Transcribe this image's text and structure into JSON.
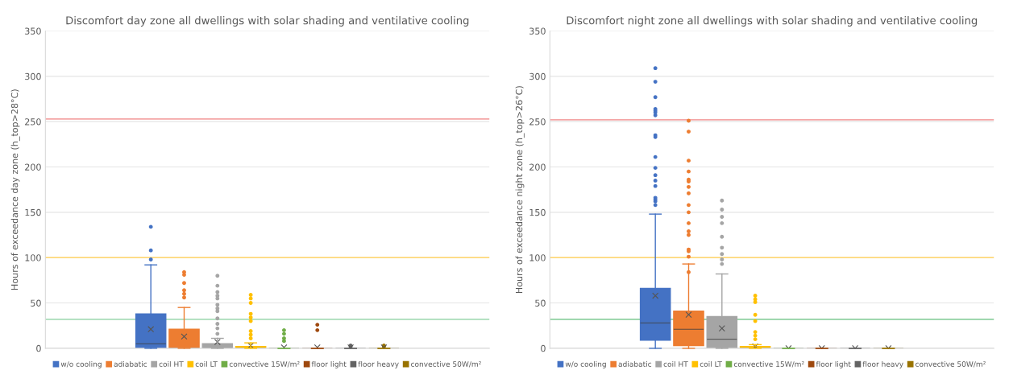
{
  "chart_data": [
    {
      "type": "box",
      "title": "Discomfort day zone all dwellings with solar shading and ventilative cooling",
      "ylabel": "Hours of exceedance day zone (h_top>28°C)",
      "categories": [
        null
      ],
      "ylim": [
        0,
        350
      ],
      "yticks": [
        0,
        50,
        100,
        150,
        200,
        250,
        300,
        350
      ],
      "grid": "y",
      "legend": "bottom",
      "ref_lines": [
        {
          "axis": "y",
          "value": 253,
          "color": "#f4a6a6"
        },
        {
          "axis": "y",
          "value": 100,
          "color": "#ffd97a"
        },
        {
          "axis": "y",
          "value": 32,
          "color": "#a8dcb8"
        }
      ],
      "series": [
        {
          "name": "w/o cooling",
          "color": "#4472c4",
          "boxes": [
            {
              "low": 0,
              "q1": 0,
              "median": 5,
              "q3": 38,
              "high": 92,
              "mean": 21,
              "outliers": [
                134,
                108,
                98
              ]
            }
          ]
        },
        {
          "name": "adiabatic",
          "color": "#ed7d31",
          "boxes": [
            {
              "low": 0,
              "q1": 0,
              "median": 0,
              "q3": 21,
              "high": 45,
              "mean": 13,
              "outliers": [
                84,
                81,
                72,
                64,
                60,
                56
              ]
            }
          ]
        },
        {
          "name": "coil HT",
          "color": "#a5a5a5",
          "boxes": [
            {
              "low": 0,
              "q1": 0,
              "median": 0,
              "q3": 5,
              "high": 11,
              "mean": 7,
              "outliers": [
                80,
                69,
                62,
                58,
                55,
                48,
                44,
                41,
                33,
                27,
                22,
                16
              ]
            }
          ]
        },
        {
          "name": "coil LT",
          "color": "#ffc000",
          "boxes": [
            {
              "low": 0,
              "q1": 0,
              "median": 0,
              "q3": 2,
              "high": 6,
              "mean": 3,
              "outliers": [
                59,
                55,
                50,
                38,
                34,
                30,
                19,
                15,
                11
              ]
            }
          ]
        },
        {
          "name": "convective 15W/m²",
          "color": "#70ad47",
          "boxes": [
            {
              "low": 0,
              "q1": 0,
              "median": 0,
              "q3": 0,
              "high": 0,
              "mean": 1,
              "outliers": [
                20,
                16,
                11,
                8
              ]
            }
          ]
        },
        {
          "name": "floor light",
          "color": "#9e480e",
          "boxes": [
            {
              "low": 0,
              "q1": 0,
              "median": 0,
              "q3": 0,
              "high": 0,
              "mean": 1,
              "outliers": [
                26,
                20
              ]
            }
          ]
        },
        {
          "name": "floor heavy",
          "color": "#636363",
          "boxes": [
            {
              "low": 0,
              "q1": 0,
              "median": 0,
              "q3": 0,
              "high": 0,
              "mean": 1,
              "outliers": [
                3,
                2
              ]
            }
          ]
        },
        {
          "name": "convective 50W/m²",
          "color": "#997300",
          "boxes": [
            {
              "low": 0,
              "q1": 0,
              "median": 0,
              "q3": 0,
              "high": 0,
              "mean": 1,
              "outliers": [
                3,
                2
              ]
            }
          ]
        }
      ]
    },
    {
      "type": "box",
      "title": "Discomfort night zone all dwellings with solar shading and ventilative cooling",
      "ylabel": "Hours of exceedance night zone (h_top>26°C)",
      "categories": [
        null
      ],
      "ylim": [
        0,
        350
      ],
      "yticks": [
        0,
        50,
        100,
        150,
        200,
        250,
        300,
        350
      ],
      "grid": "y",
      "legend": "bottom",
      "ref_lines": [
        {
          "axis": "y",
          "value": 252,
          "color": "#f4a6a6"
        },
        {
          "axis": "y",
          "value": 100,
          "color": "#ffd97a"
        },
        {
          "axis": "y",
          "value": 32,
          "color": "#8fd0a0"
        }
      ],
      "series": [
        {
          "name": "w/o cooling",
          "color": "#4472c4",
          "boxes": [
            {
              "low": 0,
              "q1": 9,
              "median": 28,
              "q3": 66,
              "high": 148,
              "mean": 58,
              "outliers": [
                309,
                294,
                277,
                264,
                262,
                260,
                257,
                235,
                233,
                211,
                199,
                191,
                185,
                179,
                166,
                164,
                162,
                158
              ]
            }
          ]
        },
        {
          "name": "adiabatic",
          "color": "#ed7d31",
          "boxes": [
            {
              "low": 0,
              "q1": 3,
              "median": 21,
              "q3": 41,
              "high": 93,
              "mean": 37,
              "outliers": [
                251,
                239,
                207,
                195,
                186,
                184,
                178,
                171,
                158,
                150,
                138,
                129,
                125,
                109,
                107,
                101,
                84
              ]
            }
          ]
        },
        {
          "name": "coil HT",
          "color": "#a5a5a5",
          "boxes": [
            {
              "low": 0,
              "q1": 0,
              "median": 10,
              "q3": 35,
              "high": 82,
              "mean": 22,
              "outliers": [
                163,
                153,
                145,
                138,
                123,
                111,
                104,
                98,
                93
              ]
            }
          ]
        },
        {
          "name": "coil LT",
          "color": "#ffc000",
          "boxes": [
            {
              "low": 0,
              "q1": 0,
              "median": 0,
              "q3": 2,
              "high": 4,
              "mean": 2,
              "outliers": [
                58,
                54,
                51,
                37,
                30,
                18,
                14,
                10
              ]
            }
          ]
        },
        {
          "name": "convective 15W/m²",
          "color": "#70ad47",
          "boxes": [
            {
              "low": 0,
              "q1": 0,
              "median": 0,
              "q3": 0,
              "high": 0,
              "mean": 0
            }
          ]
        },
        {
          "name": "floor light",
          "color": "#9e480e",
          "boxes": [
            {
              "low": 0,
              "q1": 0,
              "median": 0,
              "q3": 0,
              "high": 0,
              "mean": 0
            }
          ]
        },
        {
          "name": "floor heavy",
          "color": "#636363",
          "boxes": [
            {
              "low": 0,
              "q1": 0,
              "median": 0,
              "q3": 0,
              "high": 0,
              "mean": 0
            }
          ]
        },
        {
          "name": "convective 50W/m²",
          "color": "#997300",
          "boxes": [
            {
              "low": 0,
              "q1": 0,
              "median": 0,
              "q3": 0,
              "high": 0,
              "mean": 0
            }
          ]
        }
      ]
    }
  ]
}
